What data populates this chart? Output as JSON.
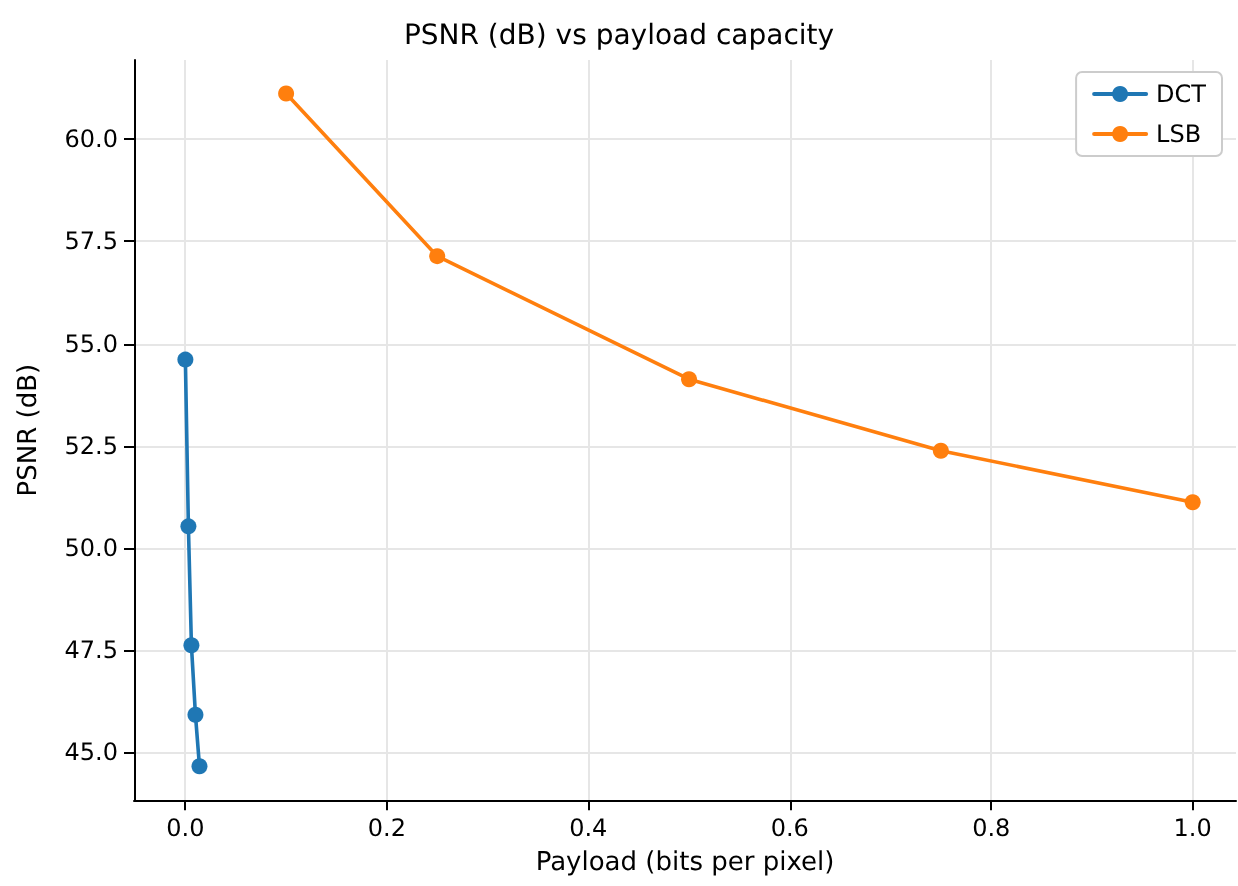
{
  "chart_data": {
    "type": "line",
    "title": "PSNR (dB) vs payload capacity",
    "xlabel": "Payload (bits per pixel)",
    "ylabel": "PSNR (dB)",
    "series": [
      {
        "name": "DCT",
        "color": "#1f77b4",
        "x": [
          0,
          0.003,
          0.006,
          0.01,
          0.014
        ],
        "values": [
          54.61,
          50.53,
          47.62,
          45.92,
          44.66
        ]
      },
      {
        "name": "LSB",
        "color": "#ff7f0e",
        "x": [
          0.1,
          0.25,
          0.5,
          0.75,
          1.0
        ],
        "values": [
          61.12,
          57.14,
          54.13,
          52.38,
          51.12
        ]
      }
    ],
    "xlim": [
      -0.051,
      1.043
    ],
    "ylim": [
      43.83,
      61.94
    ],
    "xticks": [
      {
        "value": 0,
        "label": "0.0"
      },
      {
        "value": 0.2,
        "label": "0.2"
      },
      {
        "value": 0.4,
        "label": "0.4"
      },
      {
        "value": 0.6,
        "label": "0.6"
      },
      {
        "value": 0.8,
        "label": "0.8"
      },
      {
        "value": 1,
        "label": "1.0"
      }
    ],
    "yticks": [
      {
        "value": 45,
        "label": "45.0"
      },
      {
        "value": 47.5,
        "label": "47.5"
      },
      {
        "value": 50,
        "label": "50.0"
      },
      {
        "value": 52.5,
        "label": "52.5"
      },
      {
        "value": 55,
        "label": "55.0"
      },
      {
        "value": 57.5,
        "label": "57.5"
      },
      {
        "value": 60,
        "label": "60.0"
      }
    ],
    "grid": true,
    "legend": "top right",
    "marker": "circle",
    "line_style": "solid"
  }
}
